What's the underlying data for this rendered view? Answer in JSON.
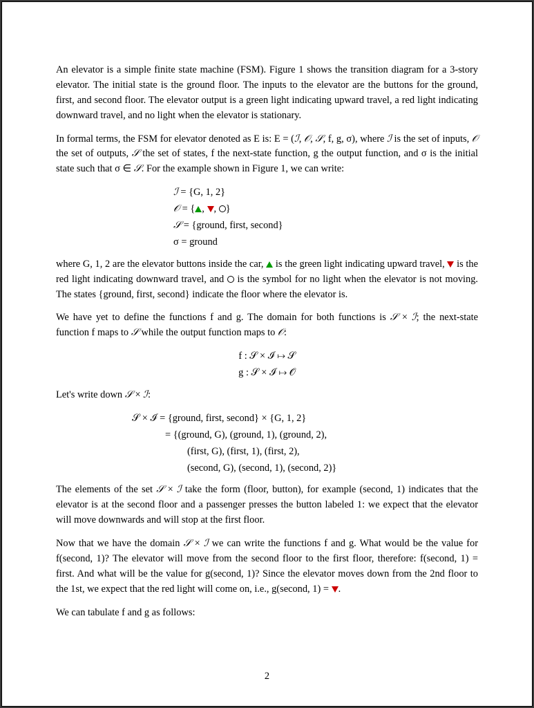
{
  "colors": {
    "page_bg": "#ffffff",
    "outer_bg": "#3a3a3a",
    "text": "#000000",
    "green_triangle": "#009a00",
    "red_triangle": "#cc0000",
    "circle_border": "#000000"
  },
  "typography": {
    "body_family": "Times New Roman",
    "body_size_pt": 11,
    "line_height": 1.52
  },
  "paragraphs": {
    "p1": "An elevator is a simple finite state machine (FSM). Figure 1 shows the transition diagram for a 3-story elevator. The initial state is the ground floor. The inputs to the elevator are the buttons for the ground, first, and second floor. The elevator output is a green light indicating upward travel, a red light indicating downward travel, and no light when the elevator is stationary.",
    "p2_a": "In formal terms, the FSM for elevator denoted as E is: E = (",
    "p2_I": "ℐ",
    "p2_b": ", ",
    "p2_O": "𝒪",
    "p2_c": ", ",
    "p2_S": "𝒮",
    "p2_d": ", f, g, σ), where ",
    "p2_I2": "ℐ",
    "p2_e": " is the set of inputs, ",
    "p2_O2": "𝒪",
    "p2_f": " the set of outputs, ",
    "p2_S2": "𝒮",
    "p2_g": " the set of states, f the next-state function, g the output function, and σ is the initial state such that σ ∈ ",
    "p2_S3": "𝒮",
    "p2_h": ". For the example shown in Figure 1, we can write:",
    "eq1_l1_a": "ℐ",
    "eq1_l1_b": " = {G, 1, 2}",
    "eq1_l2_a": "𝒪",
    "eq1_l2_b": " = {",
    "eq1_l2_c": ", ",
    "eq1_l2_d": ", ",
    "eq1_l2_e": "}",
    "eq1_l3_a": "𝒮",
    "eq1_l3_b": " = {ground,  first,  second}",
    "eq1_l4": "σ = ground",
    "p3_a": "where G, 1, 2 are the elevator buttons inside the car, ",
    "p3_b": " is the green light indicating upward travel, ",
    "p3_c": " is the red light indicating downward travel, and ",
    "p3_d": " is the symbol for no light when the elevator is not moving. The states {ground,  first,  second} indicate the floor where the elevator is.",
    "p4_a": "We have yet to define the functions f and g. The domain for both functions is ",
    "p4_S": "𝒮",
    "p4_b": " × ",
    "p4_I": "ℐ",
    "p4_c": "; the next-state function f maps to ",
    "p4_S2": "𝒮",
    "p4_d": " while the output function maps to ",
    "p4_O": "𝒪",
    "p4_e": ":",
    "eq2_l1": "f : 𝒮 × ℐ ↦ 𝒮",
    "eq2_l2": "g : 𝒮 × ℐ ↦ 𝒪",
    "p5_a": "Let's write down ",
    "p5_S": "𝒮",
    "p5_b": " × ",
    "p5_I": "ℐ",
    "p5_c": ":",
    "eq3_l1": "𝒮 × ℐ = {ground,  first,  second} × {G, 1, 2}",
    "eq3_l2": "= {(ground, G),  (ground, 1),  (ground, 2),",
    "eq3_l3": "(first, G),  (first, 1),  (first, 2),",
    "eq3_l4": "(second, G),  (second, 1),  (second, 2)}",
    "p6_a": "The elements of the set ",
    "p6_S": "𝒮",
    "p6_b": " × ",
    "p6_I": "ℐ",
    "p6_c": " take the form (floor, button), for example (second, 1) indicates that the elevator is at the second floor and a passenger presses the button labeled 1: we expect that the elevator will move downwards and will stop at the first floor.",
    "p7_a": "Now that we have the domain ",
    "p7_S": "𝒮",
    "p7_b": " × ",
    "p7_I": "ℐ",
    "p7_c": " we can write the functions f and g. What would be the value for f(second, 1)? The elevator will move from the second floor to the first floor, therefore: f(second, 1) = first. And what will be the value for g(second, 1)? Since the elevator moves down from the 2nd floor to the 1st, we expect that the red light will come on, i.e., g(second, 1) = ",
    "p7_d": ".",
    "p8": "We can tabulate f and g as follows:",
    "pagenum": "2"
  }
}
